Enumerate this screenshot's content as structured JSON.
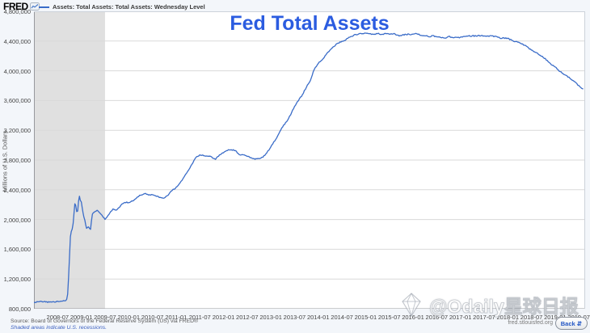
{
  "brand": {
    "logo_text": "FRED"
  },
  "legend": {
    "series_label": "Assets: Total Assets: Total Assets: Wednesday Level"
  },
  "title": "Fed Total Assets",
  "watermark": {
    "text": "@Odaily星球日报"
  },
  "footer": {
    "source": "Source: Board of Governors of the Federal Reserve System (US) via FRED®",
    "recession_note": "Shaded areas indicate U.S. recessions.",
    "site": "fred.stlouisfed.org",
    "back_label": "Back",
    "back_icon": "⇵"
  },
  "colors": {
    "line": "#3a6cc8",
    "title": "#2b5ce0",
    "recession_band": "#e0e0e0",
    "grid": "#d9d9d9",
    "axis": "#97999e"
  },
  "chart_data": {
    "type": "line",
    "title": "Fed Total Assets",
    "ylabel": "Millions of U.S. Dollars",
    "xlabel": "",
    "ylim": [
      800000,
      4800000
    ],
    "y_tick_step": 400000,
    "y_ticks": [
      "800,000",
      "1,200,000",
      "1,600,000",
      "2,000,000",
      "2,400,000",
      "2,800,000",
      "3,200,000",
      "3,600,000",
      "4,000,000",
      "4,400,000",
      "4,800,000"
    ],
    "xlim": [
      "2008-01",
      "2019-08"
    ],
    "x_ticks": [
      "2008-07",
      "2009-01",
      "2009-07",
      "2010-01",
      "2010-07",
      "2011-01",
      "2011-07",
      "2012-01",
      "2012-07",
      "2013-01",
      "2013-07",
      "2014-01",
      "2014-07",
      "2015-01",
      "2015-07",
      "2016-01",
      "2016-07",
      "2017-01",
      "2017-07",
      "2018-01",
      "2018-07",
      "2019-01",
      "2019-07"
    ],
    "grid": "horizontal",
    "legend_position": "top-left",
    "recession_bands": [
      {
        "start": "2008-01",
        "end": "2009-07"
      }
    ],
    "series": [
      {
        "name": "Assets: Total Assets: Total Assets: Wednesday Level",
        "color": "#3a6cc8",
        "points": [
          [
            "2008-01",
            885000
          ],
          [
            "2008-02",
            890000
          ],
          [
            "2008-03",
            900000
          ],
          [
            "2008-04",
            890000
          ],
          [
            "2008-05",
            890000
          ],
          [
            "2008-06",
            895000
          ],
          [
            "2008-07",
            900000
          ],
          [
            "2008-08",
            905000
          ],
          [
            "2008-09-03",
            910000
          ],
          [
            "2008-09-10",
            925000
          ],
          [
            "2008-09-17",
            1000000
          ],
          [
            "2008-09-24",
            1210000
          ],
          [
            "2008-10-01",
            1500000
          ],
          [
            "2008-10-08",
            1770000
          ],
          [
            "2008-10-15",
            1840000
          ],
          [
            "2008-10-22",
            1870000
          ],
          [
            "2008-10-29",
            1950000
          ],
          [
            "2008-11-05",
            2080000
          ],
          [
            "2008-11-12",
            2210000
          ],
          [
            "2008-11-19",
            2190000
          ],
          [
            "2008-11-26",
            2110000
          ],
          [
            "2008-12-03",
            2110000
          ],
          [
            "2008-12-10",
            2250000
          ],
          [
            "2008-12-17",
            2310000
          ],
          [
            "2008-12-24",
            2260000
          ],
          [
            "2008-12-31",
            2240000
          ],
          [
            "2009-01-14",
            2090000
          ],
          [
            "2009-01-28",
            1990000
          ],
          [
            "2009-02-11",
            1880000
          ],
          [
            "2009-02-25",
            1900000
          ],
          [
            "2009-03-11",
            1870000
          ],
          [
            "2009-03-25",
            2070000
          ],
          [
            "2009-04",
            2090000
          ],
          [
            "2009-05",
            2120000
          ],
          [
            "2009-06",
            2070000
          ],
          [
            "2009-07",
            2000000
          ],
          [
            "2009-08",
            2070000
          ],
          [
            "2009-09",
            2140000
          ],
          [
            "2009-10",
            2130000
          ],
          [
            "2009-11",
            2190000
          ],
          [
            "2009-12",
            2230000
          ],
          [
            "2010-01",
            2230000
          ],
          [
            "2010-02",
            2250000
          ],
          [
            "2010-03",
            2290000
          ],
          [
            "2010-04",
            2330000
          ],
          [
            "2010-05",
            2350000
          ],
          [
            "2010-06",
            2330000
          ],
          [
            "2010-07",
            2330000
          ],
          [
            "2010-08",
            2310000
          ],
          [
            "2010-09",
            2300000
          ],
          [
            "2010-10",
            2290000
          ],
          [
            "2010-11",
            2330000
          ],
          [
            "2010-12",
            2390000
          ],
          [
            "2011-01",
            2430000
          ],
          [
            "2011-02",
            2490000
          ],
          [
            "2011-03",
            2570000
          ],
          [
            "2011-04",
            2650000
          ],
          [
            "2011-05",
            2740000
          ],
          [
            "2011-06",
            2830000
          ],
          [
            "2011-07",
            2870000
          ],
          [
            "2011-08",
            2860000
          ],
          [
            "2011-09",
            2850000
          ],
          [
            "2011-10",
            2840000
          ],
          [
            "2011-11",
            2810000
          ],
          [
            "2011-12",
            2870000
          ],
          [
            "2012-01",
            2900000
          ],
          [
            "2012-02",
            2930000
          ],
          [
            "2012-03",
            2940000
          ],
          [
            "2012-04",
            2930000
          ],
          [
            "2012-05",
            2870000
          ],
          [
            "2012-06",
            2870000
          ],
          [
            "2012-07",
            2850000
          ],
          [
            "2012-08",
            2830000
          ],
          [
            "2012-09",
            2810000
          ],
          [
            "2012-10",
            2820000
          ],
          [
            "2012-11",
            2840000
          ],
          [
            "2012-12",
            2900000
          ],
          [
            "2013-01",
            2980000
          ],
          [
            "2013-02",
            3060000
          ],
          [
            "2013-03",
            3150000
          ],
          [
            "2013-04",
            3250000
          ],
          [
            "2013-05",
            3320000
          ],
          [
            "2013-06",
            3410000
          ],
          [
            "2013-07",
            3520000
          ],
          [
            "2013-08",
            3600000
          ],
          [
            "2013-09",
            3680000
          ],
          [
            "2013-10",
            3780000
          ],
          [
            "2013-11",
            3870000
          ],
          [
            "2013-12",
            4020000
          ],
          [
            "2014-01",
            4100000
          ],
          [
            "2014-02",
            4150000
          ],
          [
            "2014-03",
            4220000
          ],
          [
            "2014-04",
            4280000
          ],
          [
            "2014-05",
            4330000
          ],
          [
            "2014-06",
            4370000
          ],
          [
            "2014-07",
            4400000
          ],
          [
            "2014-08",
            4420000
          ],
          [
            "2014-09",
            4450000
          ],
          [
            "2014-10",
            4480000
          ],
          [
            "2014-11",
            4490000
          ],
          [
            "2014-12",
            4500000
          ],
          [
            "2015-01",
            4510000
          ],
          [
            "2015-02",
            4500000
          ],
          [
            "2015-03",
            4490000
          ],
          [
            "2015-04",
            4500000
          ],
          [
            "2015-05",
            4490000
          ],
          [
            "2015-06",
            4500000
          ],
          [
            "2015-07",
            4490000
          ],
          [
            "2015-08",
            4500000
          ],
          [
            "2015-09",
            4480000
          ],
          [
            "2015-10",
            4470000
          ],
          [
            "2015-11",
            4490000
          ],
          [
            "2015-12",
            4490000
          ],
          [
            "2016-01",
            4490000
          ],
          [
            "2016-02",
            4500000
          ],
          [
            "2016-03",
            4480000
          ],
          [
            "2016-04",
            4470000
          ],
          [
            "2016-05",
            4460000
          ],
          [
            "2016-06",
            4470000
          ],
          [
            "2016-07",
            4460000
          ],
          [
            "2016-08",
            4450000
          ],
          [
            "2016-09",
            4440000
          ],
          [
            "2016-10",
            4460000
          ],
          [
            "2016-11",
            4450000
          ],
          [
            "2016-12",
            4450000
          ],
          [
            "2017-01",
            4450000
          ],
          [
            "2017-02",
            4460000
          ],
          [
            "2017-03",
            4470000
          ],
          [
            "2017-04",
            4470000
          ],
          [
            "2017-05",
            4470000
          ],
          [
            "2017-06",
            4470000
          ],
          [
            "2017-07",
            4470000
          ],
          [
            "2017-08",
            4470000
          ],
          [
            "2017-09",
            4470000
          ],
          [
            "2017-10",
            4460000
          ],
          [
            "2017-11",
            4440000
          ],
          [
            "2017-12",
            4440000
          ],
          [
            "2018-01",
            4440000
          ],
          [
            "2018-02",
            4410000
          ],
          [
            "2018-03",
            4390000
          ],
          [
            "2018-04",
            4380000
          ],
          [
            "2018-05",
            4350000
          ],
          [
            "2018-06",
            4320000
          ],
          [
            "2018-07",
            4280000
          ],
          [
            "2018-08",
            4250000
          ],
          [
            "2018-09",
            4210000
          ],
          [
            "2018-10",
            4180000
          ],
          [
            "2018-11",
            4140000
          ],
          [
            "2018-12",
            4080000
          ],
          [
            "2019-01",
            4050000
          ],
          [
            "2019-02",
            4000000
          ],
          [
            "2019-03",
            3960000
          ],
          [
            "2019-04",
            3930000
          ],
          [
            "2019-05",
            3890000
          ],
          [
            "2019-06",
            3850000
          ],
          [
            "2019-07",
            3800000
          ],
          [
            "2019-08",
            3760000
          ]
        ]
      }
    ]
  }
}
